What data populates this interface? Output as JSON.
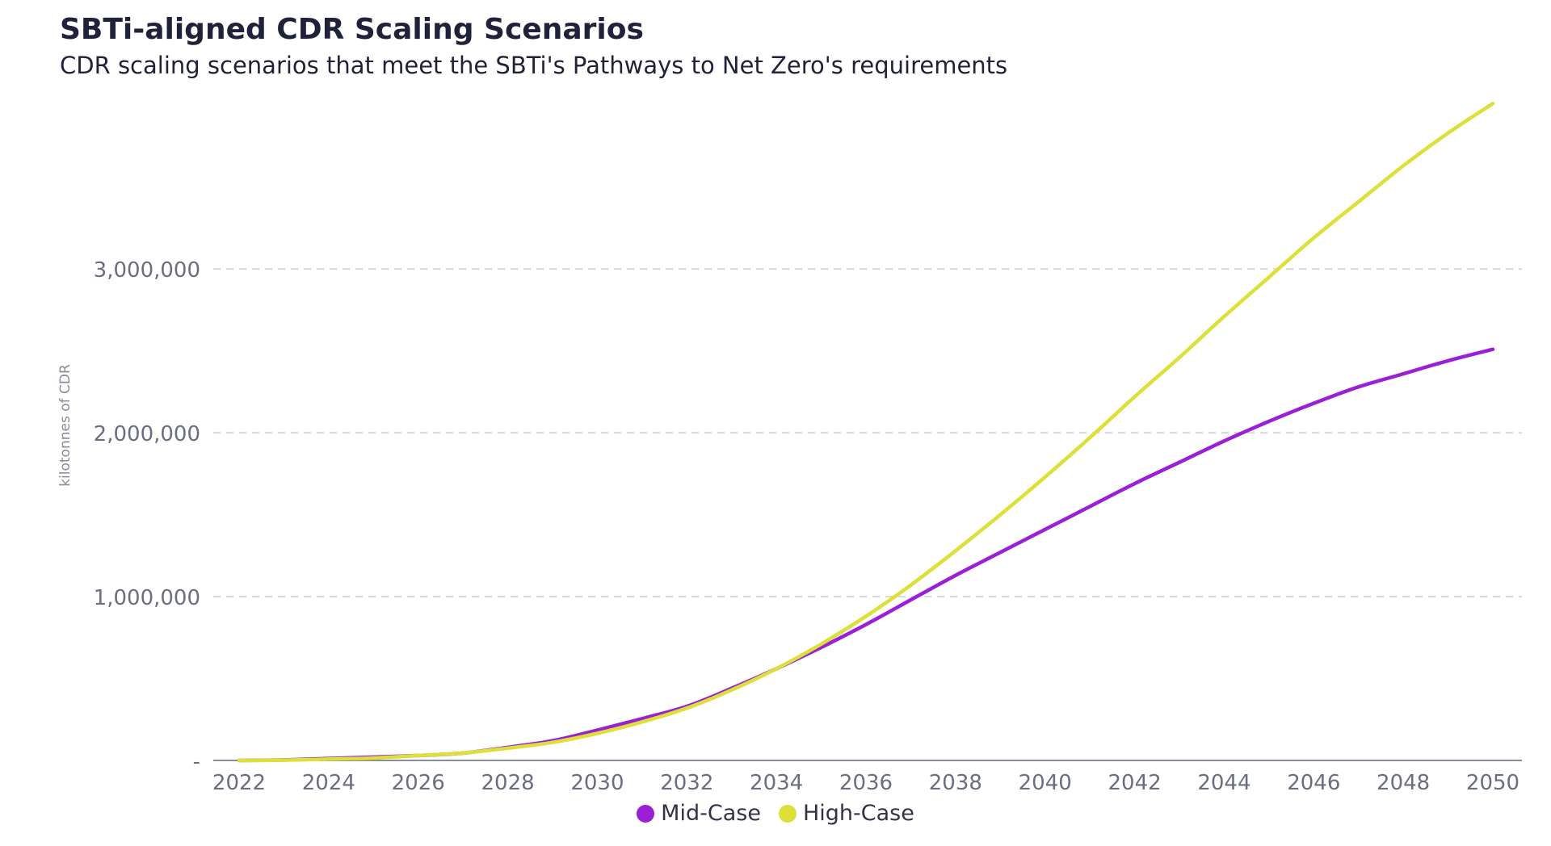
{
  "chart_data": {
    "type": "line",
    "title": "SBTi-aligned CDR Scaling Scenarios",
    "subtitle": "CDR scaling scenarios that meet the SBTi's Pathways to Net Zero's requirements",
    "xlabel": "",
    "ylabel": "kilotonnes of CDR",
    "x": [
      2022,
      2023,
      2024,
      2025,
      2026,
      2027,
      2028,
      2029,
      2030,
      2031,
      2032,
      2033,
      2034,
      2035,
      2036,
      2037,
      2038,
      2039,
      2040,
      2041,
      2042,
      2043,
      2044,
      2045,
      2046,
      2047,
      2048,
      2049,
      2050
    ],
    "x_ticks": [
      "2022",
      "2024",
      "2026",
      "2028",
      "2030",
      "2032",
      "2034",
      "2036",
      "2038",
      "2040",
      "2042",
      "2044",
      "2046",
      "2048",
      "2050"
    ],
    "ylim": [
      0,
      4100000
    ],
    "y_ticks": [
      0,
      1000000,
      2000000,
      3000000
    ],
    "y_tick_labels": [
      "-",
      "1,000,000",
      "2,000,000",
      "3,000,000"
    ],
    "grid": true,
    "legend_position": "bottom-center",
    "series": [
      {
        "name": "Mid-Case",
        "color": "#9b1fd6",
        "values": [
          0,
          3000,
          12000,
          20000,
          30000,
          45000,
          80000,
          120000,
          185000,
          255000,
          330000,
          440000,
          560000,
          690000,
          830000,
          980000,
          1130000,
          1270000,
          1410000,
          1550000,
          1690000,
          1820000,
          1950000,
          2070000,
          2180000,
          2280000,
          2360000,
          2440000,
          2510000
        ]
      },
      {
        "name": "High-Case",
        "color": "#dce038",
        "values": [
          0,
          2000,
          8000,
          15000,
          30000,
          45000,
          75000,
          110000,
          165000,
          235000,
          320000,
          430000,
          560000,
          710000,
          880000,
          1070000,
          1280000,
          1500000,
          1730000,
          1970000,
          2220000,
          2460000,
          2710000,
          2950000,
          3190000,
          3410000,
          3630000,
          3830000,
          4010000
        ]
      }
    ]
  }
}
